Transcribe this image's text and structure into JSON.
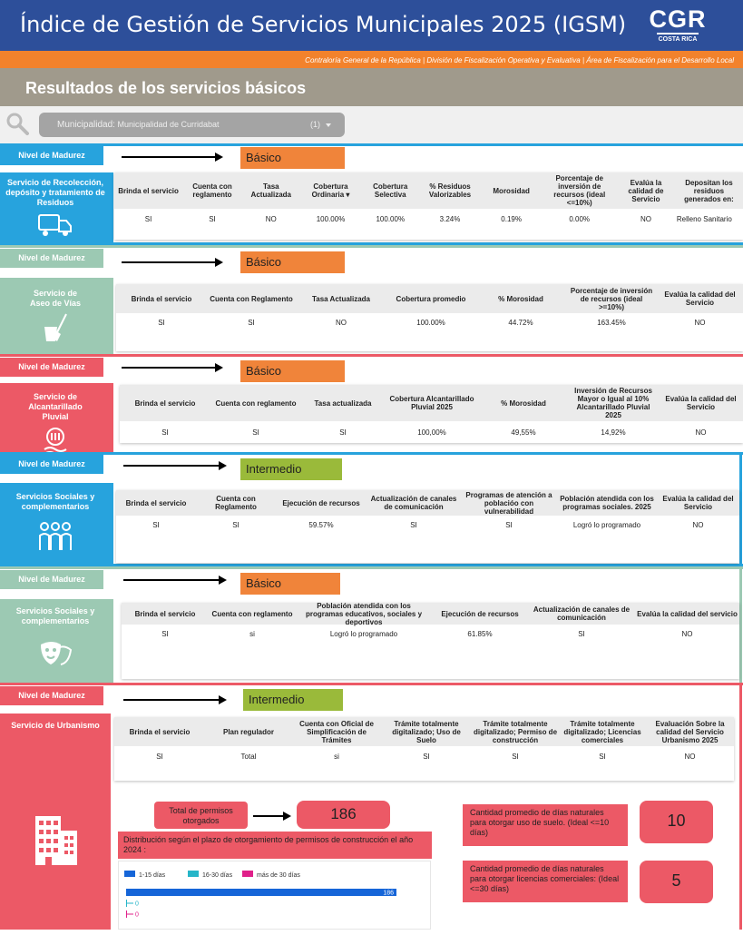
{
  "header": {
    "title": "Índice de Gestión de Servicios Municipales 2025 (IGSM)",
    "logo_main": "CGR",
    "logo_sub": "COSTA RICA"
  },
  "subheader": "Contraloría General de la República | División de Fiscalización Operativa y Evaluativa | Área de Fiscalización para el Desarrollo Local",
  "section_title": "Resultados de los servicios básicos",
  "filter": {
    "label": "Municipalidad:",
    "value": "Municipalidad de Curridabat",
    "count": "(1)"
  },
  "nivel_label": "Nivel de Madurez",
  "colors": {
    "blue": "#27a3dd",
    "green": "#9cc9b3",
    "red": "#ec5966",
    "orange": "#f0843a",
    "olive": "#9aba3a"
  },
  "services": [
    {
      "name": "Servicio de Recolección, depósito y tratamiento de Residuos",
      "icon": "garbage-truck-icon",
      "nivel": "Básico",
      "headers": [
        "Brinda el servicio",
        "Cuenta con reglamento",
        "Tasa Actualizada",
        "Cobertura Ordinaria",
        "Cobertura Selectiva",
        "% Residuos Valorizables",
        "Morosidad",
        "Porcentaje de inversión de recursos (ideal <=10%)",
        "Evalúa la calidad de Servicio",
        "Depositan los residuos generados en:"
      ],
      "values": [
        "SI",
        "SI",
        "NO",
        "100.00%",
        "100.00%",
        "3.24%",
        "0.19%",
        "0.00%",
        "NO",
        "Relleno Sanitario"
      ]
    },
    {
      "name": "Servicio de Aseo de Vías",
      "icon": "broom-bucket-icon",
      "nivel": "Básico",
      "headers": [
        "Brinda el servicio",
        "Cuenta con Reglamento",
        "Tasa Actualizada",
        "Cobertura promedio",
        "% Morosidad",
        "Porcentaje de inversión de recursos (ideal >=10%)",
        "Evalúa la calidad del Servicio"
      ],
      "values": [
        "SI",
        "SI",
        "NO",
        "100.00%",
        "44.72%",
        "163.45%",
        "NO"
      ]
    },
    {
      "name": "Servicio de Alcantarillado Pluvial",
      "icon": "drain-icon",
      "nivel": "Básico",
      "headers": [
        "Brinda el servicio",
        "Cuenta con reglamento",
        "Tasa actualizada",
        "Cobertura Alcantarillado Pluvial 2025",
        "% Morosidad",
        "Inversión de Recursos Mayor o Igual al 10% Alcantarillado Pluvial 2025",
        "Evalúa la calidad del Servicio"
      ],
      "values": [
        "SI",
        "SI",
        "SI",
        "100,00%",
        "49,55%",
        "14,92%",
        "NO"
      ]
    },
    {
      "name": "Servicios Sociales y complementarios",
      "icon": "people-icon",
      "nivel": "Intermedio",
      "headers": [
        "Brinda el servicio",
        "Cuenta con Reglamento",
        "Ejecución de recursos",
        "Actualización de canales de comunicación",
        "Programas de atención a poblacióо con vulnerabilidad",
        "Población atendida con los programas sociales. 2025",
        "Evalúa la calidad del Servicio"
      ],
      "values": [
        "SI",
        "SI",
        "59.57%",
        "SI",
        "SI",
        "Logró lo programado",
        "NO"
      ]
    },
    {
      "name": "Servicios Sociales y complementarios",
      "icon": "theater-masks-icon",
      "nivel": "Básico",
      "headers": [
        "Brinda el servicio",
        "Cuenta con reglamento",
        "Población atendida con los programas educativos, sociales y deportivos",
        "Ejecución de recursos",
        "Actualización de canales de comunicación",
        "Evalúa la calidad del servicio"
      ],
      "values": [
        "SI",
        "si",
        "Logró lo programado",
        "61.85%",
        "SI",
        "NO"
      ]
    },
    {
      "name": "Servicio de Urbanismo",
      "icon": "building-icon",
      "nivel": "Intermedio",
      "headers": [
        "Brinda el servicio",
        "Plan regulador",
        "Cuenta con Oficial de Simplificación de Trámites",
        "Trámite totalmente digitalizado; Uso de Suelo",
        "Trámite totalmente digitalizado; Permiso de construcción",
        "Trámite totalmente digitalizado; Licencias comerciales",
        "Evaluación Sobre la calidad del Servicio Urbanismo 2025"
      ],
      "values": [
        "SI",
        "Total",
        "si",
        "SI",
        "SI",
        "SI",
        "NO"
      ]
    }
  ],
  "urbanismo": {
    "permisos_label": "Total de permisos otorgados",
    "permisos_value": "186",
    "uso_suelo_label": "Cantidad promedio de días naturales para otorgar uso de suelo. (Ideal <=10 días)",
    "uso_suelo_value": "10",
    "licencias_label": "Cantidad promedio de días naturales para otorgar licencias comerciales: (Ideal <=30 días)",
    "licencias_value": "5",
    "chart_title": "Distribución según el plazo de otorgamiento  de permisos de construcción el año 2024 :"
  },
  "chart_data": {
    "type": "bar",
    "orientation": "horizontal",
    "series": [
      {
        "name": "1-15 días",
        "color": "#1565d8",
        "value": 186
      },
      {
        "name": "16-30 días",
        "color": "#26b5c8",
        "value": 0
      },
      {
        "name": "más de 30 días",
        "color": "#e0208a",
        "value": 0
      }
    ],
    "xlim": [
      0,
      186
    ],
    "legend": "top-left"
  }
}
